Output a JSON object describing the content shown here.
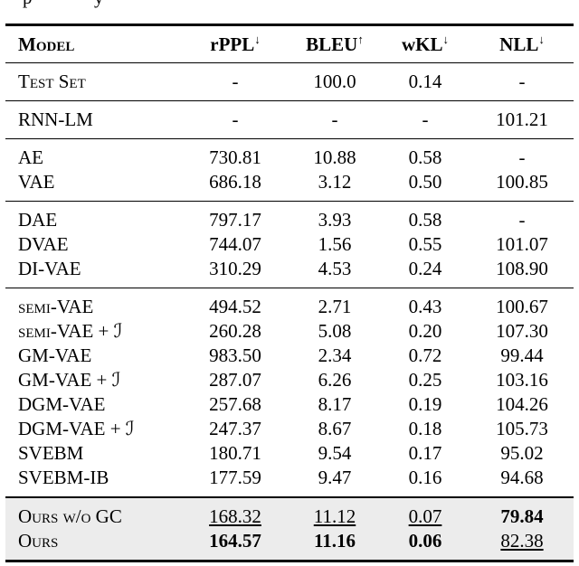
{
  "caption_fragments": [
    "p",
    "y"
  ],
  "table": {
    "highlight_bg": "#ececec",
    "rule_color": "#000000",
    "columns": [
      {
        "key": "model",
        "label": "Model",
        "arrow": ""
      },
      {
        "key": "rppl",
        "label": "rPPL",
        "arrow": "↓"
      },
      {
        "key": "bleu",
        "label": "BLEU",
        "arrow": "↑"
      },
      {
        "key": "wkl",
        "label": "wKL",
        "arrow": "↓"
      },
      {
        "key": "nll",
        "label": "NLL",
        "arrow": "↓"
      }
    ],
    "sections": [
      {
        "highlight": false,
        "rows": [
          {
            "model": "Test Set",
            "smallcaps": true,
            "values": [
              {
                "text": "-"
              },
              {
                "text": "100.0"
              },
              {
                "text": "0.14"
              },
              {
                "text": "-"
              }
            ]
          }
        ]
      },
      {
        "highlight": false,
        "rows": [
          {
            "model": "RNN-LM",
            "smallcaps": false,
            "values": [
              {
                "text": "-"
              },
              {
                "text": "-"
              },
              {
                "text": "-"
              },
              {
                "text": "101.21"
              }
            ]
          }
        ]
      },
      {
        "highlight": false,
        "rows": [
          {
            "model": "AE",
            "smallcaps": false,
            "values": [
              {
                "text": "730.81"
              },
              {
                "text": "10.88"
              },
              {
                "text": "0.58"
              },
              {
                "text": "-"
              }
            ]
          },
          {
            "model": "VAE",
            "smallcaps": false,
            "values": [
              {
                "text": "686.18"
              },
              {
                "text": "3.12"
              },
              {
                "text": "0.50"
              },
              {
                "text": "100.85"
              }
            ]
          }
        ]
      },
      {
        "highlight": false,
        "rows": [
          {
            "model": "DAE",
            "smallcaps": false,
            "values": [
              {
                "text": "797.17"
              },
              {
                "text": "3.93"
              },
              {
                "text": "0.58"
              },
              {
                "text": "-"
              }
            ]
          },
          {
            "model": "DVAE",
            "smallcaps": false,
            "values": [
              {
                "text": "744.07"
              },
              {
                "text": "1.56"
              },
              {
                "text": "0.55"
              },
              {
                "text": "101.07"
              }
            ]
          },
          {
            "model": "DI-VAE",
            "smallcaps": false,
            "values": [
              {
                "text": "310.29"
              },
              {
                "text": "4.53"
              },
              {
                "text": "0.24"
              },
              {
                "text": "108.90"
              }
            ]
          }
        ]
      },
      {
        "highlight": false,
        "rows": [
          {
            "model": "semi-VAE",
            "smallcaps": true,
            "values": [
              {
                "text": "494.52"
              },
              {
                "text": "2.71"
              },
              {
                "text": "0.43"
              },
              {
                "text": "100.67"
              }
            ]
          },
          {
            "model": "semi-VAE + ℐ",
            "smallcaps": true,
            "values": [
              {
                "text": "260.28"
              },
              {
                "text": "5.08"
              },
              {
                "text": "0.20"
              },
              {
                "text": "107.30"
              }
            ]
          },
          {
            "model": "GM-VAE",
            "smallcaps": false,
            "values": [
              {
                "text": "983.50"
              },
              {
                "text": "2.34"
              },
              {
                "text": "0.72"
              },
              {
                "text": "99.44"
              }
            ]
          },
          {
            "model": "GM-VAE + ℐ",
            "smallcaps": false,
            "values": [
              {
                "text": "287.07"
              },
              {
                "text": "6.26"
              },
              {
                "text": "0.25"
              },
              {
                "text": "103.16"
              }
            ]
          },
          {
            "model": "DGM-VAE",
            "smallcaps": false,
            "values": [
              {
                "text": "257.68"
              },
              {
                "text": "8.17"
              },
              {
                "text": "0.19"
              },
              {
                "text": "104.26"
              }
            ]
          },
          {
            "model": "DGM-VAE + ℐ",
            "smallcaps": false,
            "values": [
              {
                "text": "247.37"
              },
              {
                "text": "8.67"
              },
              {
                "text": "0.18"
              },
              {
                "text": "105.73"
              }
            ]
          },
          {
            "model": "SVEBM",
            "smallcaps": false,
            "values": [
              {
                "text": "180.71"
              },
              {
                "text": "9.54"
              },
              {
                "text": "0.17"
              },
              {
                "text": "95.02"
              }
            ]
          },
          {
            "model": "SVEBM-IB",
            "smallcaps": false,
            "values": [
              {
                "text": "177.59"
              },
              {
                "text": "9.47"
              },
              {
                "text": "0.16"
              },
              {
                "text": "94.68"
              }
            ]
          }
        ]
      },
      {
        "highlight": true,
        "rows": [
          {
            "model": "Ours w/o GC",
            "smallcaps": true,
            "values": [
              {
                "text": "168.32",
                "style": "u"
              },
              {
                "text": "11.12",
                "style": "u"
              },
              {
                "text": "0.07",
                "style": "u"
              },
              {
                "text": "79.84",
                "style": "b"
              }
            ]
          },
          {
            "model": "Ours",
            "smallcaps": true,
            "values": [
              {
                "text": "164.57",
                "style": "b"
              },
              {
                "text": "11.16",
                "style": "b"
              },
              {
                "text": "0.06",
                "style": "b"
              },
              {
                "text": "82.38",
                "style": "u"
              }
            ]
          }
        ]
      }
    ]
  }
}
